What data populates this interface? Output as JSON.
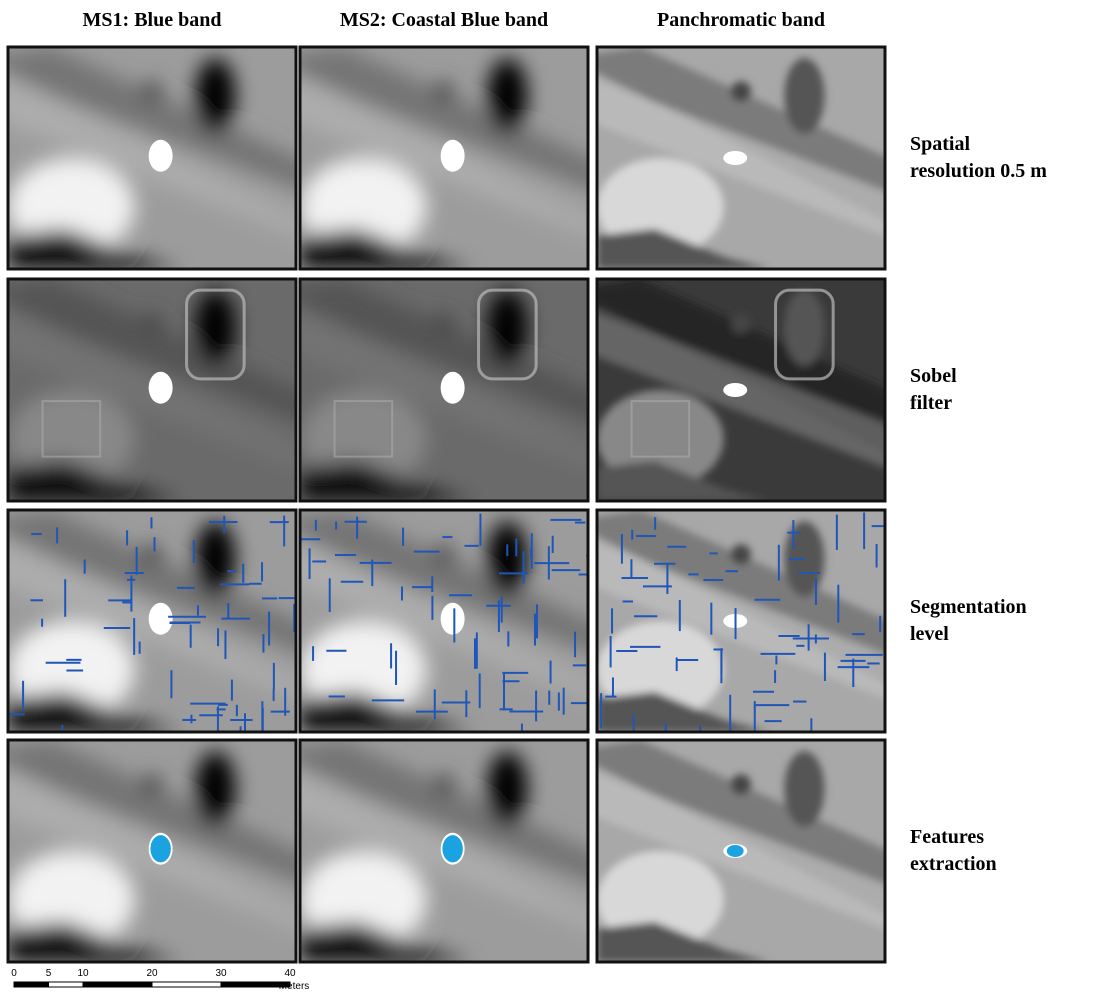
{
  "columns": [
    "MS1: Blue band",
    "MS2: Coastal Blue band",
    "Panchromatic band"
  ],
  "rows": [
    [
      "Spatial",
      "resolution 0.5 m"
    ],
    [
      "Sobel",
      "filter"
    ],
    [
      "Segmentation",
      "level"
    ],
    [
      "Features",
      "extraction"
    ]
  ],
  "scale_bar": {
    "ticks": [
      0,
      5,
      10,
      20,
      30,
      40
    ],
    "unit": "Meters"
  }
}
